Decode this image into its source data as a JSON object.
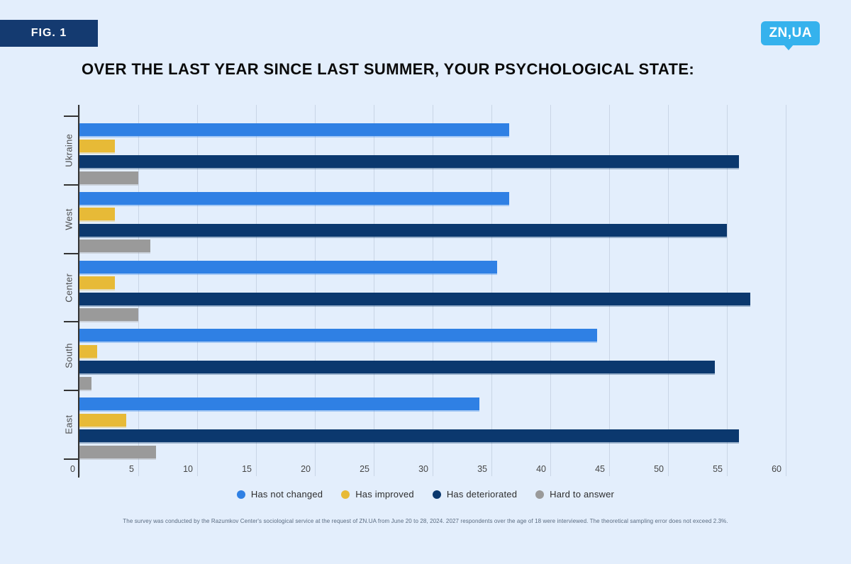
{
  "figure_label": "FIG. 1",
  "logo_text": "ZN,UA",
  "title": "OVER THE LAST YEAR SINCE LAST SUMMER, YOUR PSYCHOLOGICAL STATE:",
  "footnote": "The survey was conducted by the Razumkov Center's sociological service at the request of ZN.UA from June 20 to 28, 2024. 2027 respondents over the age of 18 were interviewed. The theoretical sampling error does not exceed 2.3%.",
  "colors": {
    "background": "#e3eefc",
    "badge": "#143a70",
    "logo": "#35b2ed",
    "gridline": "#c9d5e6",
    "axis": "#333333",
    "blue": "#2f80e4",
    "yellow": "#e7ba37",
    "navy": "#0b386e",
    "gray": "#9a9a9a"
  },
  "chart_data": {
    "type": "bar",
    "orientation": "horizontal",
    "title": "OVER THE LAST YEAR SINCE LAST SUMMER, YOUR PSYCHOLOGICAL STATE:",
    "categories": [
      "Ukraine",
      "West",
      "Center",
      "South",
      "East"
    ],
    "series": [
      {
        "name": "Has not changed",
        "color": "#2f80e4",
        "values": [
          36.5,
          36.5,
          35.5,
          44,
          34
        ]
      },
      {
        "name": "Has improved",
        "color": "#e7ba37",
        "values": [
          3,
          3,
          3,
          1.5,
          4
        ]
      },
      {
        "name": "Has deteriorated",
        "color": "#0b386e",
        "values": [
          56,
          55,
          57,
          54,
          56
        ]
      },
      {
        "name": "Hard to answer",
        "color": "#9a9a9a",
        "values": [
          5,
          6,
          5,
          1,
          6.5
        ]
      }
    ],
    "x_ticks": [
      0,
      5,
      10,
      15,
      20,
      25,
      30,
      35,
      40,
      45,
      50,
      55,
      60
    ],
    "xlim": [
      0,
      65
    ],
    "grid": "vertical",
    "legend_position": "bottom",
    "units": "%"
  }
}
